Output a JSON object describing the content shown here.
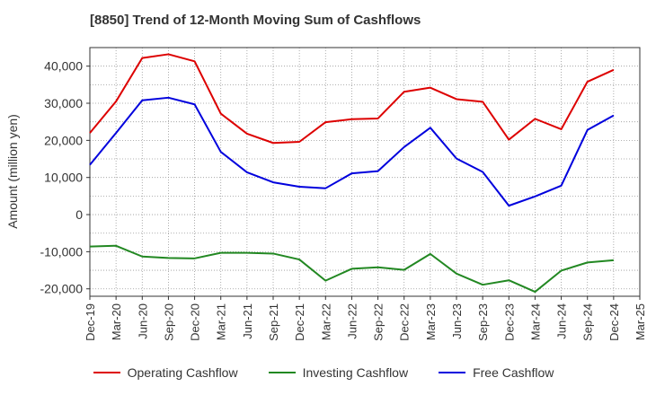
{
  "chart_data": {
    "type": "line",
    "title": "[8850]  Trend of 12-Month Moving Sum of Cashflows",
    "xlabel": "",
    "ylabel": "Amount (million yen)",
    "x": [
      "Dec-19",
      "Mar-20",
      "Jun-20",
      "Sep-20",
      "Dec-20",
      "Mar-21",
      "Jun-21",
      "Sep-21",
      "Dec-21",
      "Mar-22",
      "Jun-22",
      "Sep-22",
      "Dec-22",
      "Mar-23",
      "Jun-23",
      "Sep-23",
      "Dec-23",
      "Mar-24",
      "Jun-24",
      "Sep-24",
      "Dec-24",
      "Mar-25"
    ],
    "ylim": [
      -22000,
      45000
    ],
    "yticks": [
      -20000,
      -10000,
      0,
      10000,
      20000,
      30000,
      40000
    ],
    "ytick_labels": [
      "-20,000",
      "-10,000",
      "0",
      "10,000",
      "20,000",
      "30,000",
      "40,000"
    ],
    "grid": true,
    "legend_position": "bottom",
    "series": [
      {
        "name": "Operating Cashflow",
        "color": "#dd0000",
        "values": [
          22000,
          30500,
          42200,
          43200,
          41300,
          27200,
          21800,
          19300,
          19600,
          24900,
          25700,
          25900,
          33100,
          34200,
          31100,
          30400,
          20200,
          25800,
          23000,
          35800,
          39000,
          null
        ]
      },
      {
        "name": "Investing Cashflow",
        "color": "#228822",
        "values": [
          -8600,
          -8400,
          -11300,
          -11700,
          -11800,
          -10300,
          -10300,
          -10500,
          -12100,
          -17800,
          -14600,
          -14200,
          -14900,
          -10600,
          -15900,
          -18900,
          -17700,
          -20800,
          -15100,
          -12900,
          -12300,
          null
        ]
      },
      {
        "name": "Free Cashflow",
        "color": "#0000dd",
        "values": [
          13400,
          22000,
          30800,
          31500,
          29700,
          16900,
          11400,
          8700,
          7500,
          7100,
          11100,
          11700,
          18200,
          23400,
          15100,
          11500,
          2400,
          4900,
          7800,
          22800,
          26700,
          null
        ]
      }
    ]
  }
}
